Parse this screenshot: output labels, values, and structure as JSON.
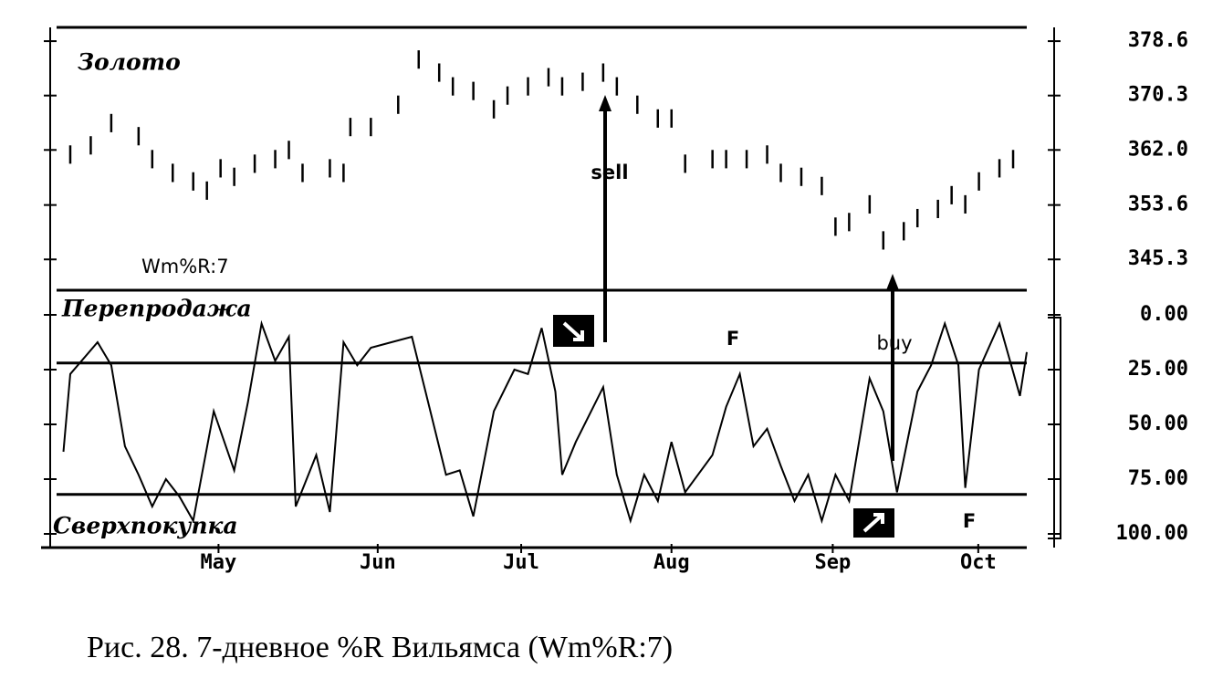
{
  "chart_data": [
    {
      "type": "ohlc",
      "title": "Золото",
      "color": "#000000",
      "x": [
        2,
        5,
        8,
        12,
        14,
        17,
        20,
        22,
        24,
        26,
        29,
        32,
        34,
        36,
        40,
        42,
        43,
        46,
        50,
        53,
        56,
        58,
        61,
        64,
        66,
        69,
        72,
        74,
        77,
        80,
        82,
        85,
        88,
        90,
        92,
        96,
        98,
        101,
        104,
        106,
        109,
        112,
        114,
        116,
        119,
        121,
        124,
        126,
        129,
        131,
        133,
        135,
        138,
        140
      ],
      "high": [
        362.7,
        364.1,
        367.5,
        365.5,
        362.0,
        359.9,
        358.6,
        357.2,
        360.6,
        359.3,
        361.3,
        362.0,
        363.4,
        359.9,
        360.6,
        359.9,
        366.9,
        366.9,
        370.3,
        377.2,
        375.2,
        373.1,
        372.4,
        369.6,
        371.7,
        373.1,
        374.5,
        373.1,
        373.8,
        375.2,
        373.1,
        370.3,
        368.2,
        368.2,
        361.3,
        362.0,
        362.0,
        362.0,
        362.7,
        359.9,
        359.3,
        357.9,
        351.7,
        352.4,
        355.1,
        349.6,
        351.0,
        353.0,
        354.4,
        356.5,
        355.1,
        358.6,
        360.6,
        362.0
      ],
      "low": [
        359.9,
        361.3,
        364.7,
        362.7,
        359.2,
        357.1,
        355.8,
        354.4,
        357.8,
        356.5,
        358.5,
        359.2,
        360.6,
        357.1,
        357.8,
        357.1,
        364.1,
        364.1,
        367.5,
        374.4,
        372.4,
        370.3,
        369.6,
        366.8,
        368.9,
        370.3,
        371.7,
        370.3,
        371.0,
        372.4,
        370.3,
        367.5,
        365.4,
        365.4,
        358.5,
        359.2,
        359.2,
        359.2,
        359.9,
        357.1,
        356.5,
        355.1,
        348.9,
        349.6,
        352.3,
        346.8,
        348.2,
        350.2,
        351.6,
        353.7,
        352.3,
        355.8,
        357.8,
        359.2
      ],
      "xlim": [
        0,
        142
      ],
      "ylim": [
        340.6,
        380.7
      ],
      "yticks": [
        378.6,
        370.3,
        {
          "value": 362,
          "label": "362.0"
        },
        353.6,
        345.3
      ],
      "annotations": {
        "sell": "sell"
      }
    },
    {
      "type": "line",
      "title": "Wm%R:7",
      "color": "#000000",
      "inverted": true,
      "x": [
        1,
        2,
        6,
        8,
        10,
        12,
        14,
        16,
        18,
        20,
        23,
        26,
        28,
        30,
        32,
        34,
        35,
        38,
        40,
        42,
        44,
        46,
        49,
        52,
        54,
        57,
        59,
        61,
        64,
        67,
        69,
        71,
        73,
        74,
        76,
        80,
        82,
        84,
        86,
        88,
        90,
        92,
        96,
        98,
        100,
        102,
        104,
        106,
        108,
        110,
        112,
        114,
        116,
        119,
        121,
        123,
        126,
        128,
        130,
        132,
        133,
        135,
        138,
        141,
        142
      ],
      "values": [
        62.5,
        27,
        12.5,
        23,
        60,
        73,
        87.5,
        75,
        83,
        94,
        44,
        71,
        40,
        4,
        21,
        10,
        87.5,
        64,
        90,
        12.5,
        23,
        15,
        12.5,
        10,
        35,
        73,
        71,
        92,
        44,
        25,
        27,
        6,
        35,
        73,
        58,
        33,
        73,
        94,
        73,
        85,
        58,
        81,
        64,
        42,
        27,
        60,
        52,
        69,
        85,
        73,
        94,
        73,
        85,
        29,
        44,
        81,
        35,
        23,
        4,
        23,
        79,
        25,
        4,
        37,
        17
      ],
      "xlim": [
        0,
        142
      ],
      "ylim": [
        -11.25,
        106.25
      ],
      "yticks": [
        {
          "value": 0,
          "label": "0.00"
        },
        {
          "value": 25,
          "label": "25.00"
        },
        {
          "value": 50,
          "label": "50.00"
        },
        {
          "value": 75,
          "label": "75.00"
        },
        {
          "value": 100,
          "label": "100.00"
        }
      ],
      "xticks": [
        {
          "value": 23.7,
          "label": "May"
        },
        {
          "value": 47,
          "label": "Jun"
        },
        {
          "value": 68,
          "label": "Jul"
        },
        {
          "value": 90,
          "label": "Aug"
        },
        {
          "value": 113.6,
          "label": "Sep"
        },
        {
          "value": 134.9,
          "label": "Oct"
        }
      ],
      "levels": [
        22,
        82
      ],
      "annotations": {
        "top_zone": "Перепродажа",
        "bottom_zone": "Сверхпокупка",
        "buy": "buy",
        "f": [
          "F",
          "F"
        ]
      }
    }
  ],
  "caption": "Рис. 28. 7-дневное %R Вильямса (Wm%R:7)"
}
